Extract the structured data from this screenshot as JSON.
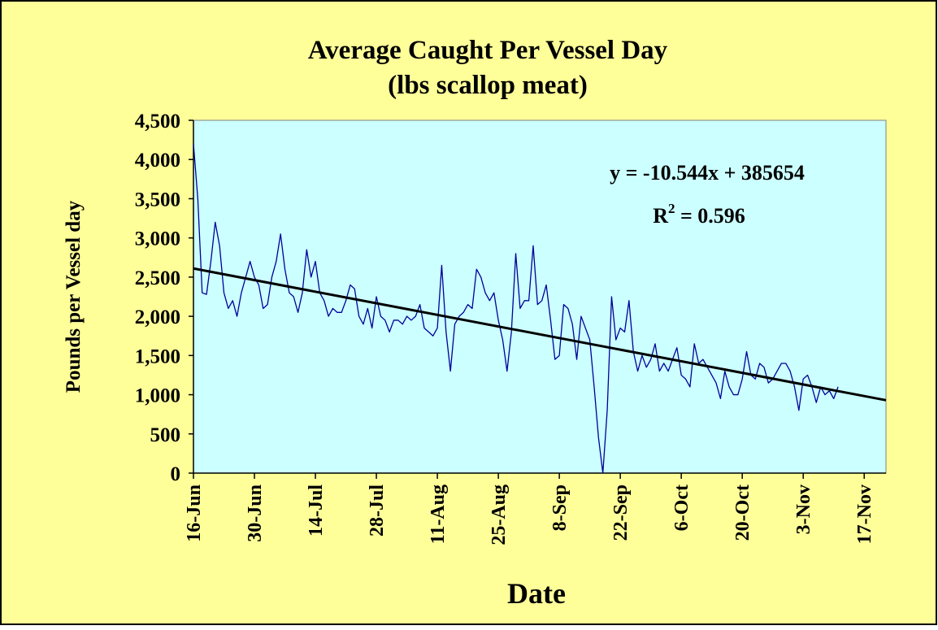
{
  "chart_data": {
    "type": "line",
    "title": "Average Caught Per Vessel Day",
    "subtitle": "(lbs scallop meat)",
    "x_label": "Date",
    "y_label": "Pounds per Vessel day",
    "equation": "y = -10.544x + 385654",
    "r_squared": {
      "base": "R",
      "exponent": "2",
      "text": " = 0.596"
    },
    "xlim": [
      "16-Jun",
      "22-Nov"
    ],
    "xticks": [
      "16-Jun",
      "30-Jun",
      "14-Jul",
      "28-Jul",
      "11-Aug",
      "25-Aug",
      "8-Sep",
      "22-Sep",
      "6-Oct",
      "20-Oct",
      "3-Nov",
      "17-Nov"
    ],
    "ylim": [
      0,
      4500
    ],
    "yticks": [
      {
        "value": 0,
        "label": "0"
      },
      {
        "value": 500,
        "label": "500"
      },
      {
        "value": 1000,
        "label": "1,000"
      },
      {
        "value": 1500,
        "label": "1,500"
      },
      {
        "value": 2000,
        "label": "2,000"
      },
      {
        "value": 2500,
        "label": "2,500"
      },
      {
        "value": 3000,
        "label": "3,000"
      },
      {
        "value": 3500,
        "label": "3,500"
      },
      {
        "value": 4000,
        "label": "4,000"
      },
      {
        "value": 4500,
        "label": "4,500"
      }
    ],
    "series": [
      {
        "color": "#000099",
        "x": [
          "16-Jun",
          "17-Jun",
          "18-Jun",
          "19-Jun",
          "20-Jun",
          "21-Jun",
          "22-Jun",
          "23-Jun",
          "24-Jun",
          "25-Jun",
          "26-Jun",
          "27-Jun",
          "28-Jun",
          "29-Jun",
          "30-Jun",
          "1-Jul",
          "2-Jul",
          "3-Jul",
          "4-Jul",
          "5-Jul",
          "6-Jul",
          "7-Jul",
          "8-Jul",
          "9-Jul",
          "10-Jul",
          "11-Jul",
          "12-Jul",
          "13-Jul",
          "14-Jul",
          "15-Jul",
          "16-Jul",
          "17-Jul",
          "18-Jul",
          "19-Jul",
          "20-Jul",
          "21-Jul",
          "22-Jul",
          "23-Jul",
          "24-Jul",
          "25-Jul",
          "26-Jul",
          "27-Jul",
          "28-Jul",
          "29-Jul",
          "30-Jul",
          "31-Jul",
          "1-Aug",
          "2-Aug",
          "3-Aug",
          "4-Aug",
          "5-Aug",
          "6-Aug",
          "7-Aug",
          "8-Aug",
          "9-Aug",
          "10-Aug",
          "11-Aug",
          "12-Aug",
          "13-Aug",
          "14-Aug",
          "15-Aug",
          "16-Aug",
          "17-Aug",
          "18-Aug",
          "19-Aug",
          "20-Aug",
          "21-Aug",
          "22-Aug",
          "23-Aug",
          "24-Aug",
          "25-Aug",
          "26-Aug",
          "27-Aug",
          "28-Aug",
          "29-Aug",
          "30-Aug",
          "31-Aug",
          "1-Sep",
          "2-Sep",
          "3-Sep",
          "4-Sep",
          "5-Sep",
          "6-Sep",
          "7-Sep",
          "8-Sep",
          "9-Sep",
          "10-Sep",
          "11-Sep",
          "12-Sep",
          "13-Sep",
          "14-Sep",
          "15-Sep",
          "16-Sep",
          "17-Sep",
          "18-Sep",
          "19-Sep",
          "20-Sep",
          "21-Sep",
          "22-Sep",
          "23-Sep",
          "24-Sep",
          "25-Sep",
          "26-Sep",
          "27-Sep",
          "28-Sep",
          "29-Sep",
          "30-Sep",
          "1-Oct",
          "2-Oct",
          "3-Oct",
          "4-Oct",
          "5-Oct",
          "6-Oct",
          "7-Oct",
          "8-Oct",
          "9-Oct",
          "10-Oct",
          "11-Oct",
          "12-Oct",
          "13-Oct",
          "14-Oct",
          "15-Oct",
          "16-Oct",
          "17-Oct",
          "18-Oct",
          "19-Oct",
          "20-Oct",
          "21-Oct",
          "22-Oct",
          "23-Oct",
          "24-Oct",
          "25-Oct",
          "26-Oct",
          "27-Oct",
          "28-Oct",
          "29-Oct",
          "30-Oct",
          "31-Oct",
          "1-Nov",
          "2-Nov",
          "3-Nov",
          "4-Nov",
          "5-Nov",
          "6-Nov",
          "7-Nov",
          "8-Nov",
          "9-Nov",
          "10-Nov",
          "11-Nov"
        ],
        "values": [
          4200,
          3500,
          2300,
          2280,
          2700,
          3200,
          2900,
          2300,
          2100,
          2200,
          2000,
          2300,
          2500,
          2700,
          2500,
          2400,
          2100,
          2150,
          2500,
          2700,
          3050,
          2600,
          2300,
          2250,
          2050,
          2300,
          2850,
          2500,
          2700,
          2300,
          2200,
          2000,
          2100,
          2050,
          2050,
          2200,
          2400,
          2350,
          2000,
          1900,
          2100,
          1850,
          2250,
          2000,
          1950,
          1800,
          1950,
          1950,
          1900,
          2000,
          1950,
          2000,
          2150,
          1850,
          1800,
          1750,
          1850,
          2650,
          1800,
          1300,
          1900,
          2000,
          2050,
          2150,
          2100,
          2600,
          2500,
          2300,
          2200,
          2300,
          1950,
          1700,
          1300,
          1800,
          2800,
          2100,
          2200,
          2200,
          2900,
          2150,
          2200,
          2400,
          1950,
          1450,
          1500,
          2150,
          2100,
          1900,
          1450,
          2000,
          1850,
          1700,
          1100,
          450,
          0,
          800,
          2250,
          1700,
          1850,
          1800,
          2200,
          1550,
          1300,
          1500,
          1350,
          1450,
          1650,
          1300,
          1400,
          1300,
          1450,
          1600,
          1250,
          1200,
          1100,
          1650,
          1400,
          1450,
          1350,
          1250,
          1150,
          950,
          1300,
          1100,
          1000,
          1000,
          1200,
          1550,
          1250,
          1200,
          1400,
          1350,
          1150,
          1200,
          1300,
          1400,
          1400,
          1300,
          1100,
          800,
          1200,
          1250,
          1100,
          900,
          1100,
          1000,
          1050,
          950,
          1100
        ]
      },
      {
        "color": "#000000",
        "x": [
          "16-Jun",
          "22-Nov"
        ],
        "values": [
          2610,
          930
        ]
      }
    ]
  }
}
